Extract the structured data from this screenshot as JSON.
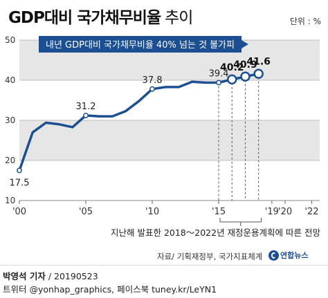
{
  "header": {
    "title": "GDP대비 국가채무비율",
    "title_suffix": "추이",
    "unit": "단위 : %"
  },
  "chart_data": {
    "type": "line",
    "ylim": [
      10,
      50
    ],
    "yticks": [
      10,
      20,
      30,
      40,
      50
    ],
    "x_range": [
      2000,
      2022.6
    ],
    "xticks": [
      {
        "year": 2000,
        "label": "'00"
      },
      {
        "year": 2005,
        "label": "'05"
      },
      {
        "year": 2010,
        "label": "'10"
      },
      {
        "year": 2015,
        "label": "'15"
      },
      {
        "year": 2019,
        "label": "'19"
      },
      {
        "year": 2020,
        "label": "'20"
      },
      {
        "year": 2022,
        "label": "'22"
      }
    ],
    "bands": [
      [
        40,
        50
      ],
      [
        20,
        30
      ]
    ],
    "series": [
      {
        "points": [
          {
            "x": 2000,
            "y": 17.5
          },
          {
            "x": 2001,
            "y": 27.0
          },
          {
            "x": 2002,
            "y": 29.4
          },
          {
            "x": 2003,
            "y": 29.0
          },
          {
            "x": 2004,
            "y": 28.3
          },
          {
            "x": 2005,
            "y": 31.2
          },
          {
            "x": 2006,
            "y": 31.0
          },
          {
            "x": 2007,
            "y": 31.0
          },
          {
            "x": 2008,
            "y": 32.3
          },
          {
            "x": 2009,
            "y": 34.8
          },
          {
            "x": 2010,
            "y": 37.8
          },
          {
            "x": 2011,
            "y": 38.3
          },
          {
            "x": 2012,
            "y": 38.3
          },
          {
            "x": 2013,
            "y": 39.6
          },
          {
            "x": 2014,
            "y": 39.4
          },
          {
            "x": 2015,
            "y": 39.4
          },
          {
            "x": 2016,
            "y": 40.2
          },
          {
            "x": 2017,
            "y": 40.9
          },
          {
            "x": 2018,
            "y": 41.6
          }
        ],
        "labels": [
          {
            "x": 2000,
            "y": 17.5,
            "text": "17.5"
          },
          {
            "x": 2005,
            "y": 31.2,
            "text": "31.2"
          },
          {
            "x": 2010,
            "y": 37.8,
            "text": "37.8"
          },
          {
            "x": 2015,
            "y": 39.4,
            "text": "39.4"
          },
          {
            "x": 2016,
            "y": 40.2,
            "text": "40.2"
          },
          {
            "x": 2017,
            "y": 40.9,
            "text": "40.9"
          },
          {
            "x": 2018,
            "y": 41.6,
            "text": "41.6"
          }
        ]
      }
    ],
    "callout": "내년 GDP대비 국가채무비율 40% 넘는 것 불가피",
    "plan_note": "지난해 발표한 2018～2022년 재정운용계획에 따른 전망",
    "colors": {
      "line": "#1c4f91",
      "band": "#e6e6e6",
      "callout_bg": "#1c4f91",
      "callout_text": "#ffffff"
    }
  },
  "footer": {
    "source": "자료/ 기획재정부, 국가지표체계",
    "brand": "연합뉴스",
    "author": "박영석 기자",
    "date": "20190523",
    "sns": "트위터 @yonhap_graphics, 페이스북 tuney.kr/LeYN1"
  }
}
